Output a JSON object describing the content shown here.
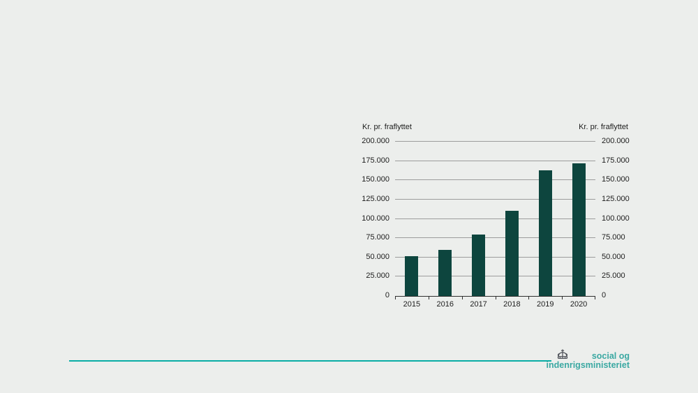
{
  "chart_data": {
    "type": "bar",
    "title_left": "Kr. pr. fraflyttet",
    "title_right": "Kr. pr. fraflyttet",
    "categories": [
      "2015",
      "2016",
      "2017",
      "2018",
      "2019",
      "2020"
    ],
    "values": [
      52000,
      60000,
      80000,
      110000,
      163000,
      172000
    ],
    "xlabel": "",
    "ylabel": "Kr. pr. fraflyttet",
    "ylim": [
      0,
      200000
    ],
    "ytick_step": 25000,
    "ytick_labels": [
      "0",
      "25.000",
      "50.000",
      "75.000",
      "100.000",
      "125.000",
      "150.000",
      "175.000",
      "200.000"
    ],
    "grid": true,
    "legend_position": "none",
    "bar_color": "#0d453e",
    "grid_color": "#9c9c9c",
    "axis_color": "#2f2f2f"
  },
  "footer": {
    "rule_color": "#09ada5",
    "logo": {
      "icon": "crown-icon",
      "line1": "social og",
      "line2": "indenrigsministeriet",
      "text_color": "#3aa8a2"
    }
  }
}
